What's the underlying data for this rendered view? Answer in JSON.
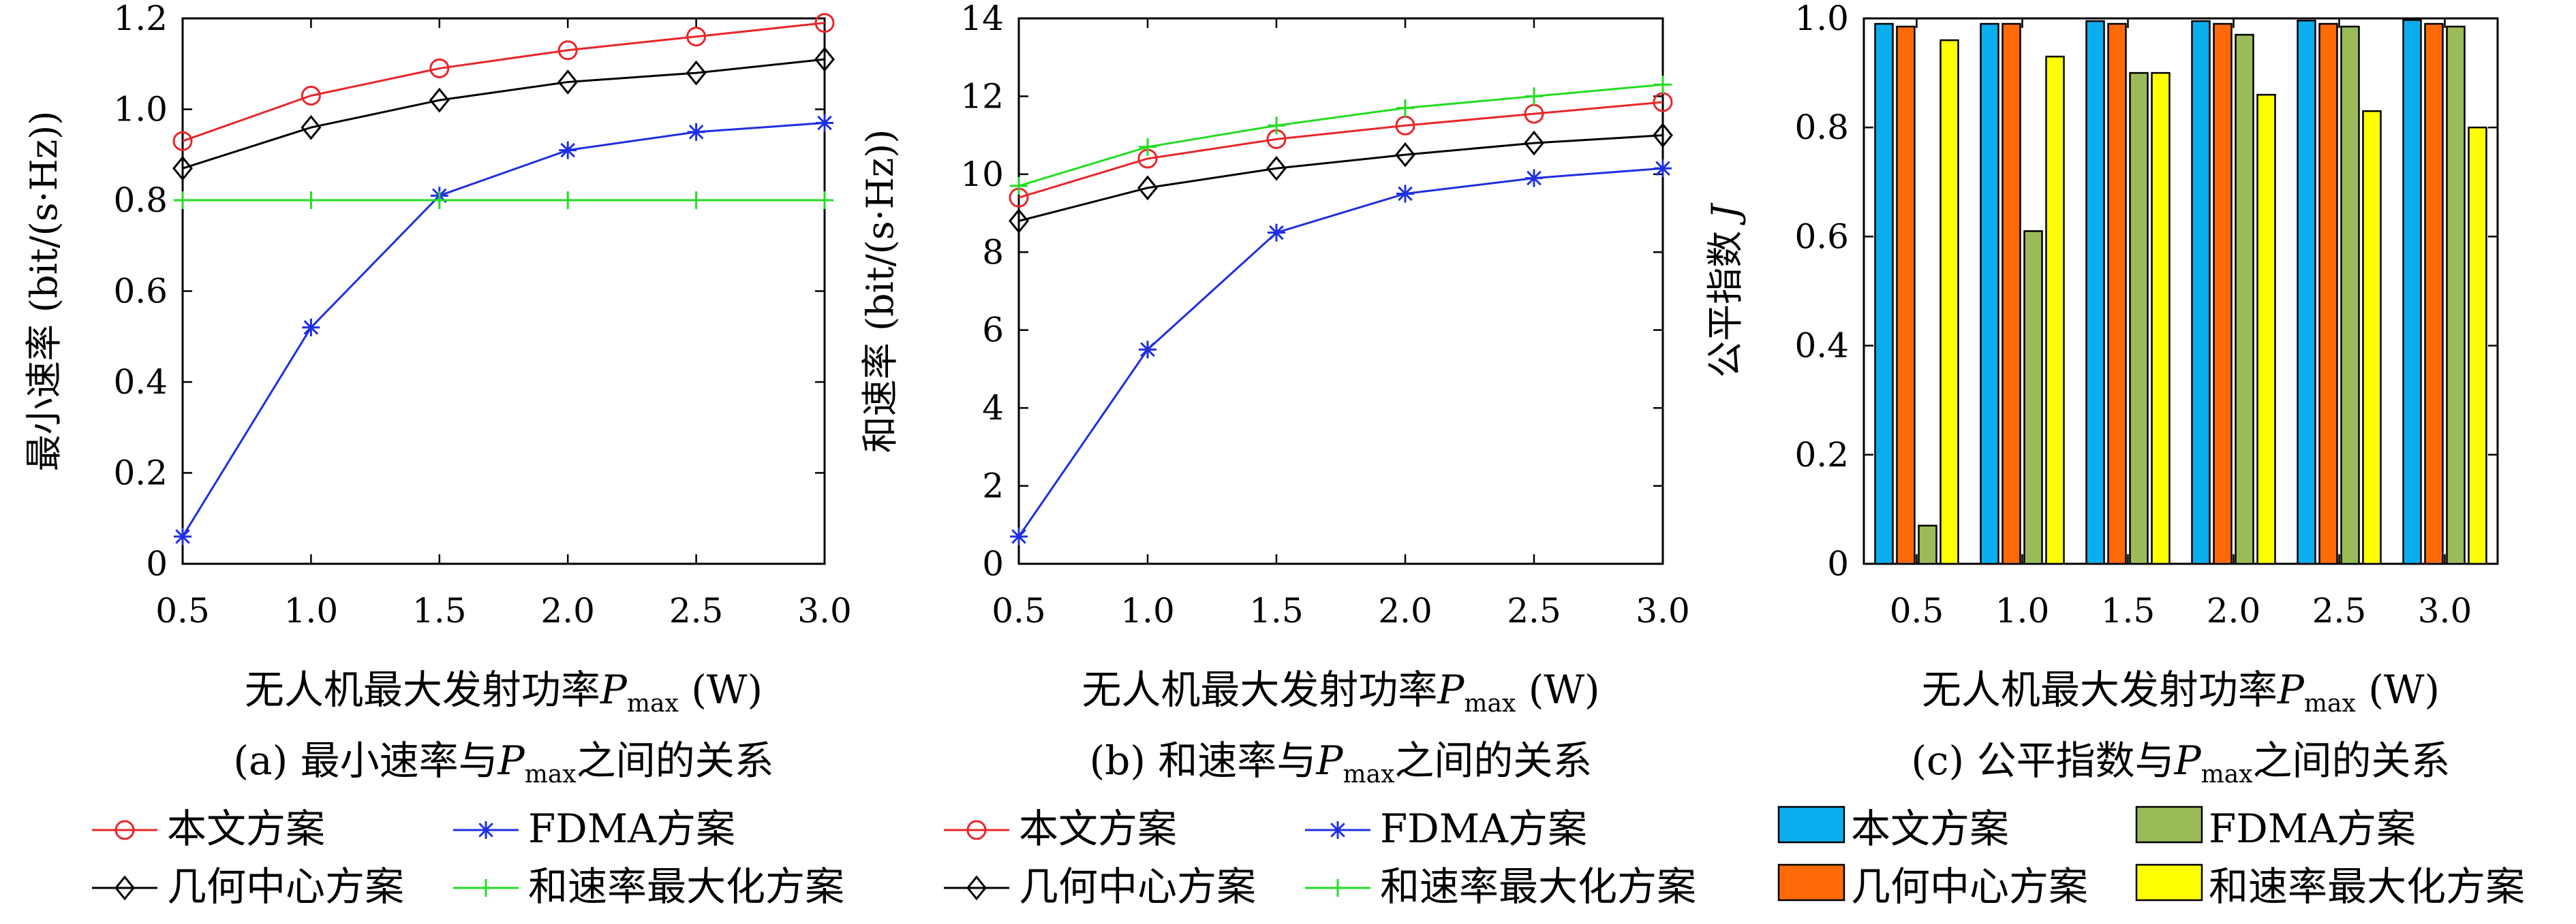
{
  "chart_data": [
    {
      "type": "line",
      "panel_id": "a",
      "x": [
        0.5,
        1.0,
        1.5,
        2.0,
        2.5,
        3.0
      ],
      "x_tick_labels": [
        "0.5",
        "1.0",
        "1.5",
        "2.0",
        "2.5",
        "3.0"
      ],
      "xlim": [
        0.5,
        3.0
      ],
      "ylim": [
        0,
        1.2
      ],
      "y_ticks": [
        0,
        0.2,
        0.4,
        0.6,
        0.8,
        1.0,
        1.2
      ],
      "y_tick_labels": [
        "0",
        "0.2",
        "0.4",
        "0.6",
        "0.8",
        "1.0",
        "1.2"
      ],
      "ylabel": "最小速率 (bit/(s·Hz))",
      "xlabel_main": "无人机最大发射功率",
      "xlabel_var": "P",
      "xlabel_sub": "max",
      "xlabel_unit": " (W)",
      "caption_prefix": "(a) 最小速率与",
      "caption_var": "P",
      "caption_sub": "max",
      "caption_suffix": "之间的关系",
      "grid": false,
      "series": [
        {
          "name": "本文方案",
          "color": "#e8262a",
          "marker": "circle",
          "values": [
            0.93,
            1.03,
            1.09,
            1.13,
            1.16,
            1.19
          ]
        },
        {
          "name": "FDMA方案",
          "color": "#1f2fe0",
          "marker": "asterisk",
          "values": [
            0.06,
            0.52,
            0.81,
            0.91,
            0.95,
            0.97
          ]
        },
        {
          "name": "几何中心方案",
          "color": "#000000",
          "marker": "diamond",
          "values": [
            0.87,
            0.96,
            1.02,
            1.06,
            1.08,
            1.11
          ]
        },
        {
          "name": "和速率最大化方案",
          "color": "#22dd22",
          "marker": "plus",
          "values": [
            0.8,
            0.8,
            0.8,
            0.8,
            0.8,
            0.8
          ]
        }
      ]
    },
    {
      "type": "line",
      "panel_id": "b",
      "x": [
        0.5,
        1.0,
        1.5,
        2.0,
        2.5,
        3.0
      ],
      "x_tick_labels": [
        "0.5",
        "1.0",
        "1.5",
        "2.0",
        "2.5",
        "3.0"
      ],
      "xlim": [
        0.5,
        3.0
      ],
      "ylim": [
        0,
        14
      ],
      "y_ticks": [
        0,
        2,
        4,
        6,
        8,
        10,
        12,
        14
      ],
      "y_tick_labels": [
        "0",
        "2",
        "4",
        "6",
        "8",
        "10",
        "12",
        "14"
      ],
      "ylabel": "和速率 (bit/(s·Hz))",
      "xlabel_main": "无人机最大发射功率",
      "xlabel_var": "P",
      "xlabel_sub": "max",
      "xlabel_unit": " (W)",
      "caption_prefix": "(b) 和速率与",
      "caption_var": "P",
      "caption_sub": "max",
      "caption_suffix": "之间的关系",
      "grid": false,
      "series": [
        {
          "name": "本文方案",
          "color": "#e8262a",
          "marker": "circle",
          "values": [
            9.4,
            10.4,
            10.9,
            11.25,
            11.55,
            11.85
          ]
        },
        {
          "name": "FDMA方案",
          "color": "#1f2fe0",
          "marker": "asterisk",
          "values": [
            0.7,
            5.5,
            8.5,
            9.5,
            9.9,
            10.15
          ]
        },
        {
          "name": "几何中心方案",
          "color": "#000000",
          "marker": "diamond",
          "values": [
            8.8,
            9.65,
            10.15,
            10.5,
            10.8,
            11.0
          ]
        },
        {
          "name": "和速率最大化方案",
          "color": "#22dd22",
          "marker": "plus",
          "values": [
            9.7,
            10.7,
            11.25,
            11.7,
            12.0,
            12.3
          ]
        }
      ]
    },
    {
      "type": "bar",
      "panel_id": "c",
      "categories": [
        "0.5",
        "1.0",
        "1.5",
        "2.0",
        "2.5",
        "3.0"
      ],
      "ylim": [
        0,
        1.0
      ],
      "y_ticks": [
        0,
        0.2,
        0.4,
        0.6,
        0.8,
        1.0
      ],
      "y_tick_labels": [
        "0",
        "0.2",
        "0.4",
        "0.6",
        "0.8",
        "1.0"
      ],
      "ylabel_main": "公平指数",
      "ylabel_var": "J",
      "xlabel_main": "无人机最大发射功率",
      "xlabel_var": "P",
      "xlabel_sub": "max",
      "xlabel_unit": " (W)",
      "caption_prefix": "(c) 公平指数与",
      "caption_var": "P",
      "caption_sub": "max",
      "caption_suffix": "之间的关系",
      "grid": false,
      "series": [
        {
          "name": "本文方案",
          "color": "#0aaeef",
          "values": [
            0.99,
            0.99,
            0.995,
            0.995,
            0.996,
            0.997
          ]
        },
        {
          "name": "几何中心方案",
          "color": "#ff6a06",
          "values": [
            0.985,
            0.99,
            0.99,
            0.99,
            0.99,
            0.99
          ]
        },
        {
          "name": "FDMA方案",
          "color": "#9bbb59",
          "values": [
            0.07,
            0.61,
            0.9,
            0.97,
            0.985,
            0.985
          ]
        },
        {
          "name": "和速率最大化方案",
          "color": "#ffff00",
          "values": [
            0.96,
            0.93,
            0.9,
            0.86,
            0.83,
            0.8
          ]
        }
      ]
    }
  ]
}
